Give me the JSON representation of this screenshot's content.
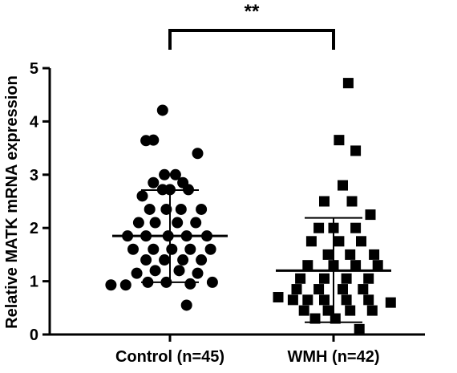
{
  "chart_data": {
    "type": "scatter",
    "title": "",
    "xlabel": "",
    "ylabel": "Relative MATK mRNA expression",
    "ylim": [
      0,
      5
    ],
    "yticks": [
      "0",
      "1",
      "2",
      "3",
      "4",
      "5"
    ],
    "categories": [
      "Control (n=45)",
      "WMH (n=42)"
    ],
    "significance": "**",
    "colors": {
      "marker": "#000000",
      "axis": "#000000"
    },
    "series": [
      {
        "category": "Control (n=45)",
        "marker": "circle",
        "mean": 1.85,
        "sd": [
          0.98,
          2.71
        ],
        "points": [
          [
            -0.04,
            4.21
          ],
          [
            -0.13,
            3.64
          ],
          [
            -0.09,
            3.65
          ],
          [
            0.15,
            3.4
          ],
          [
            -0.03,
            3.0
          ],
          [
            0.03,
            3.0
          ],
          [
            -0.09,
            2.85
          ],
          [
            0.07,
            2.85
          ],
          [
            -0.15,
            2.6
          ],
          [
            0.0,
            2.72
          ],
          [
            0.1,
            2.72
          ],
          [
            -0.04,
            2.72
          ],
          [
            -0.11,
            2.35
          ],
          [
            -0.02,
            2.35
          ],
          [
            0.06,
            2.35
          ],
          [
            0.17,
            2.35
          ],
          [
            -0.17,
            2.1
          ],
          [
            -0.08,
            2.1
          ],
          [
            0.04,
            2.1
          ],
          [
            0.14,
            2.1
          ],
          [
            -0.23,
            1.85
          ],
          [
            -0.13,
            1.85
          ],
          [
            -0.01,
            1.85
          ],
          [
            0.09,
            1.85
          ],
          [
            0.2,
            1.85
          ],
          [
            -0.2,
            1.6
          ],
          [
            -0.09,
            1.6
          ],
          [
            0.01,
            1.6
          ],
          [
            0.11,
            1.6
          ],
          [
            0.22,
            1.6
          ],
          [
            -0.13,
            1.4
          ],
          [
            -0.03,
            1.4
          ],
          [
            0.07,
            1.4
          ],
          [
            0.17,
            1.4
          ],
          [
            -0.18,
            1.15
          ],
          [
            -0.08,
            1.2
          ],
          [
            0.05,
            1.2
          ],
          [
            0.15,
            1.15
          ],
          [
            -0.32,
            0.93
          ],
          [
            -0.24,
            0.93
          ],
          [
            -0.12,
            0.98
          ],
          [
            -0.02,
            0.98
          ],
          [
            0.11,
            0.95
          ],
          [
            0.23,
            0.98
          ],
          [
            0.09,
            0.55
          ]
        ]
      },
      {
        "category": "WMH (n=42)",
        "marker": "square",
        "mean": 1.2,
        "sd": [
          0.23,
          2.19
        ],
        "points": [
          [
            0.08,
            4.72
          ],
          [
            0.03,
            3.65
          ],
          [
            0.12,
            3.45
          ],
          [
            0.05,
            2.8
          ],
          [
            -0.05,
            2.5
          ],
          [
            0.1,
            2.5
          ],
          [
            0.2,
            2.25
          ],
          [
            -0.08,
            2.0
          ],
          [
            0.0,
            2.0
          ],
          [
            0.12,
            2.0
          ],
          [
            -0.12,
            1.75
          ],
          [
            0.03,
            1.75
          ],
          [
            0.15,
            1.75
          ],
          [
            -0.03,
            1.5
          ],
          [
            0.09,
            1.5
          ],
          [
            0.22,
            1.5
          ],
          [
            -0.14,
            1.3
          ],
          [
            0.0,
            1.3
          ],
          [
            0.12,
            1.3
          ],
          [
            0.24,
            1.3
          ],
          [
            -0.18,
            1.05
          ],
          [
            -0.05,
            1.05
          ],
          [
            0.07,
            1.05
          ],
          [
            0.19,
            1.05
          ],
          [
            -0.2,
            0.85
          ],
          [
            -0.08,
            0.85
          ],
          [
            0.05,
            0.85
          ],
          [
            0.16,
            0.85
          ],
          [
            -0.3,
            0.7
          ],
          [
            -0.22,
            0.65
          ],
          [
            -0.14,
            0.65
          ],
          [
            -0.05,
            0.65
          ],
          [
            0.07,
            0.65
          ],
          [
            0.19,
            0.65
          ],
          [
            0.31,
            0.6
          ],
          [
            -0.16,
            0.45
          ],
          [
            -0.03,
            0.45
          ],
          [
            0.09,
            0.45
          ],
          [
            0.21,
            0.45
          ],
          [
            -0.1,
            0.3
          ],
          [
            0.01,
            0.3
          ],
          [
            0.14,
            0.1
          ]
        ]
      }
    ]
  }
}
